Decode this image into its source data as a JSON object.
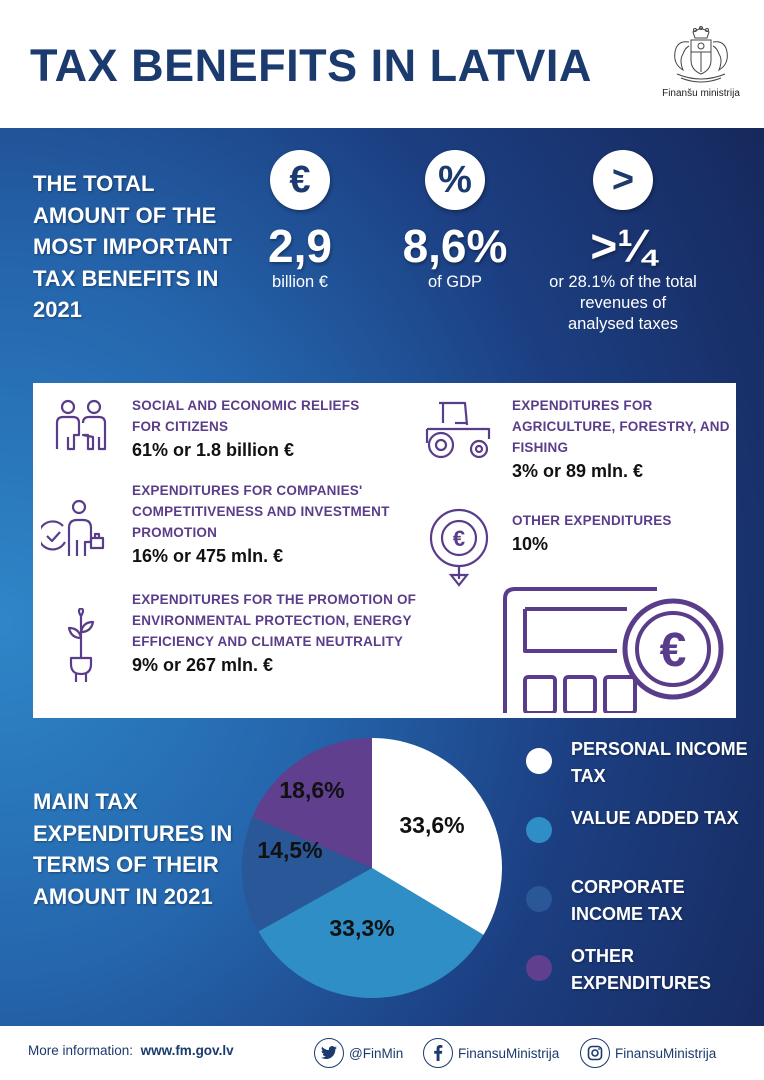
{
  "header": {
    "title": "TAX BENEFITS IN LATVIA",
    "ministry_name": "Finanšu ministrija"
  },
  "stats": {
    "heading": "THE TOTAL AMOUNT OF THE MOST IMPORTANT TAX BENEFITS IN 2021",
    "items": [
      {
        "symbol": "€",
        "value": "2,9",
        "caption": "billion €"
      },
      {
        "symbol": "%",
        "value": "8,6%",
        "caption": "of GDP"
      },
      {
        "symbol": ">",
        "value": ">¼",
        "caption": "or 28.1% of the total revenues of analysed taxes"
      }
    ]
  },
  "categories": [
    {
      "title": "SOCIAL AND ECONOMIC RELIEFS FOR CITIZENS",
      "value": "61% or 1.8 billion €",
      "icon": "people-icon"
    },
    {
      "title": "EXPENDITURES FOR COMPANIES' COMPETITIVENESS AND INVESTMENT PROMOTION",
      "value": "16% or 475 mln. €",
      "icon": "businessman-icon"
    },
    {
      "title": "EXPENDITURES FOR THE PROMOTION OF ENVIRONMENTAL PROTECTION, ENERGY EFFICIENCY AND CLIMATE NEUTRALITY",
      "value": "9% or 267 mln. €",
      "icon": "eco-plug-icon"
    },
    {
      "title": "EXPENDITURES FOR AGRICULTURE, FORESTRY, AND FISHING",
      "value": "3% or 89 mln. €",
      "icon": "tractor-icon"
    },
    {
      "title": "OTHER EXPENDITURES",
      "value": "10%",
      "icon": "euro-coin-icon"
    }
  ],
  "pie": {
    "heading": "MAIN TAX EXPENDITURES IN TERMS OF THEIR AMOUNT IN 2021"
  },
  "chart_data": {
    "type": "pie",
    "title": "MAIN TAX EXPENDITURES IN TERMS OF THEIR AMOUNT IN 2021",
    "slices": [
      {
        "name": "PERSONAL INCOME TAX",
        "value": 33.6,
        "label": "33,6%",
        "color": "#ffffff"
      },
      {
        "name": "VALUE ADDED TAX",
        "value": 33.3,
        "label": "33,3%",
        "color": "#2f8ec5"
      },
      {
        "name": "CORPORATE INCOME TAX",
        "value": 14.5,
        "label": "14,5%",
        "color": "#2a5797"
      },
      {
        "name": "OTHER EXPENDITURES",
        "value": 18.6,
        "label": "18,6%",
        "color": "#5f3f8e"
      }
    ],
    "legend_position": "right"
  },
  "footer": {
    "more_info_label": "More information:",
    "more_info_url": "www.fm.gov.lv",
    "twitter": "@FinMin",
    "facebook": "FinansuMinistrija",
    "instagram": "FinansuMinistrija"
  }
}
